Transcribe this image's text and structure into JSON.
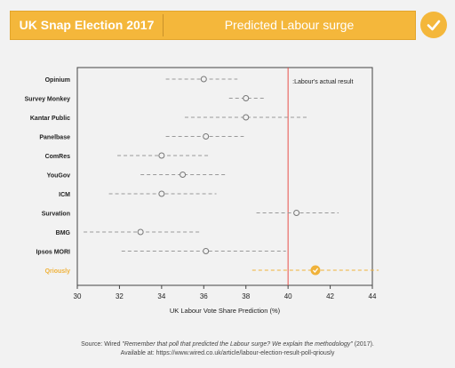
{
  "header": {
    "left_title": "UK Snap Election 2017",
    "right_title": "Predicted Labour surge",
    "badge_icon": "checkmark-icon"
  },
  "colors": {
    "accent": "#f4b73b",
    "actual_line": "#e8524a",
    "poll_grey": "#999999",
    "highlight": "#f0b23a"
  },
  "chart_data": {
    "type": "scatter",
    "xlabel": "UK Labour Vote Share Prediction (%)",
    "xlim": [
      30,
      44
    ],
    "xticks": [
      30,
      32,
      34,
      36,
      38,
      40,
      42,
      44
    ],
    "reference_line": {
      "value": 40,
      "label": ":Labour's actual result"
    },
    "highlight_pollster": "Qriously",
    "series": [
      {
        "pollster": "Opinium",
        "estimate": 36.0,
        "low": 34.2,
        "high": 37.6
      },
      {
        "pollster": "Survey Monkey",
        "estimate": 38.0,
        "low": 37.2,
        "high": 38.9
      },
      {
        "pollster": "Kantar Public",
        "estimate": 38.0,
        "low": 35.1,
        "high": 41.0
      },
      {
        "pollster": "Panelbase",
        "estimate": 36.1,
        "low": 34.2,
        "high": 37.9
      },
      {
        "pollster": "ComRes",
        "estimate": 34.0,
        "low": 31.9,
        "high": 36.3
      },
      {
        "pollster": "YouGov",
        "estimate": 35.0,
        "low": 33.0,
        "high": 37.1
      },
      {
        "pollster": "ICM",
        "estimate": 34.0,
        "low": 31.5,
        "high": 36.6
      },
      {
        "pollster": "Survation",
        "estimate": 40.4,
        "low": 38.5,
        "high": 42.4
      },
      {
        "pollster": "BMG",
        "estimate": 33.0,
        "low": 30.3,
        "high": 35.8
      },
      {
        "pollster": "Ipsos MORI",
        "estimate": 36.1,
        "low": 32.1,
        "high": 39.9
      },
      {
        "pollster": "Qriously",
        "estimate": 41.3,
        "low": 38.3,
        "high": 44.3
      }
    ]
  },
  "source": {
    "prefix": "Source: Wired ",
    "title": "\"Remember that poll that predicted the Labour surge? We explain the methodology\"",
    "suffix": " (2017).",
    "url_line": "Available at: https://www.wired.co.uk/article/labour-election-result-poll-qriously"
  }
}
